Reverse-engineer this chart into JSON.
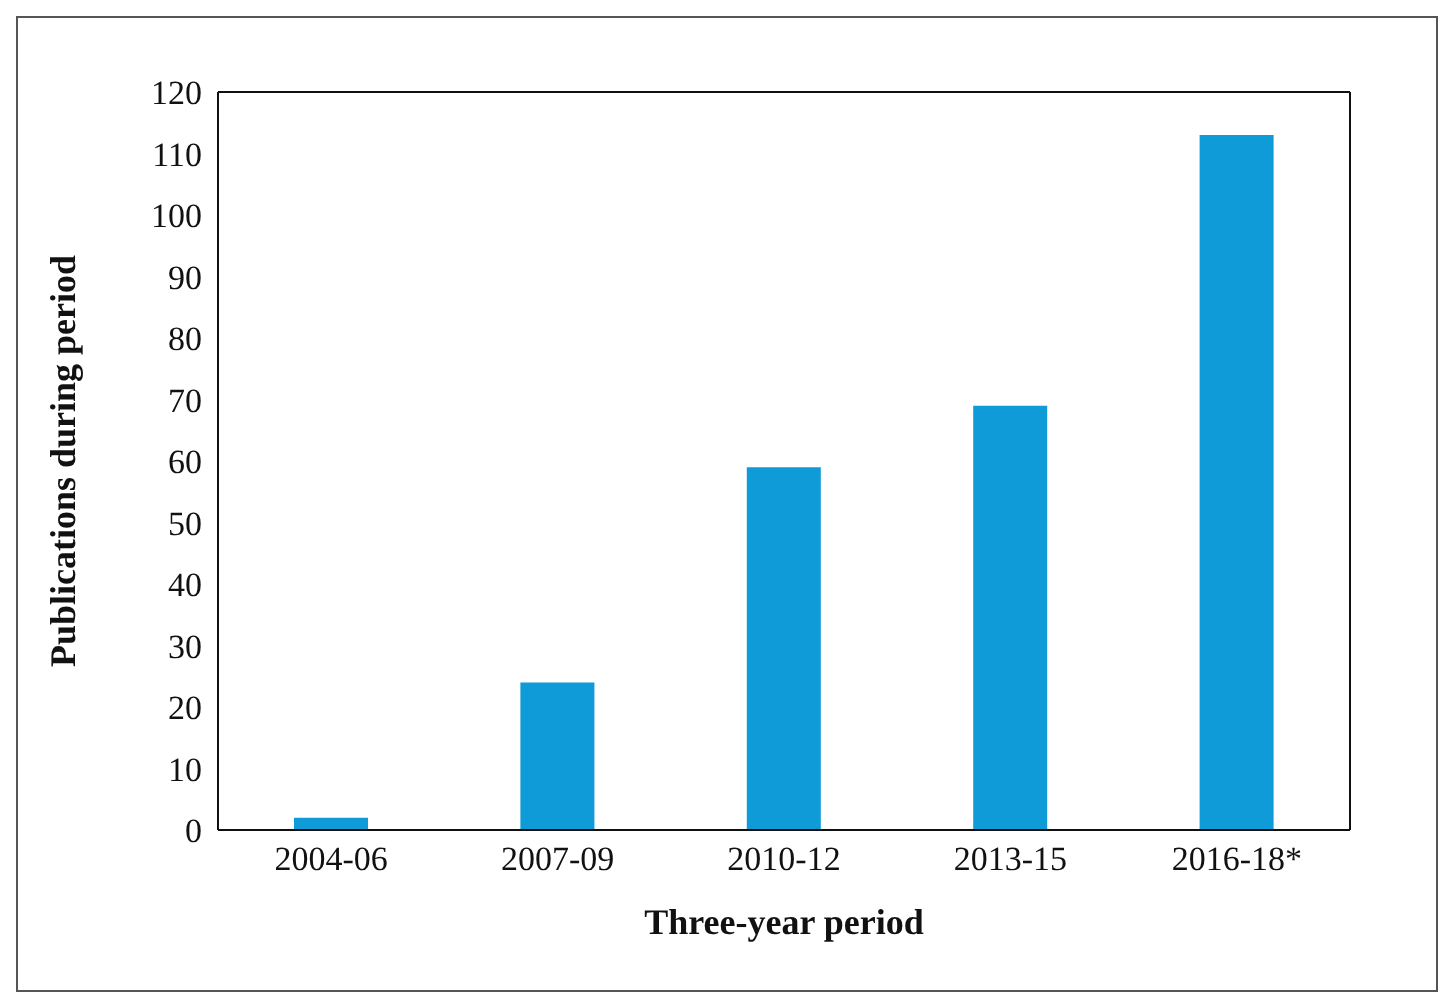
{
  "chart_data": {
    "type": "bar",
    "xlabel": "Three-year period",
    "ylabel": "Publications during period",
    "categories": [
      "2004-06",
      "2007-09",
      "2010-12",
      "2013-15",
      "2016-18*"
    ],
    "values": [
      2,
      24,
      59,
      69,
      113
    ],
    "color": "#0f9ad8",
    "ylim": [
      0,
      120
    ],
    "yticks": [
      0,
      10,
      20,
      30,
      40,
      50,
      60,
      70,
      80,
      90,
      100,
      110,
      120
    ],
    "grid": false,
    "legend": false
  }
}
